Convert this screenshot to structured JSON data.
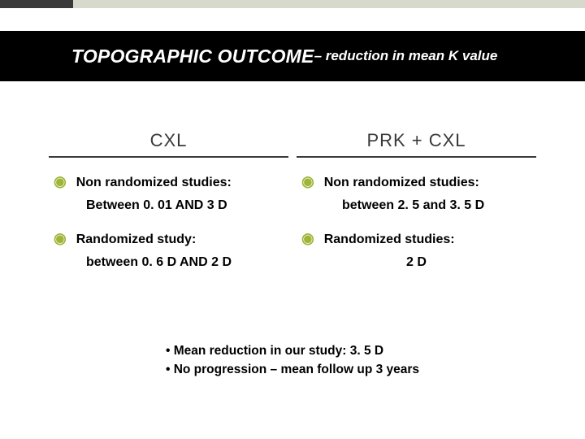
{
  "colors": {
    "topbar_bg": "#d6d9cb",
    "topbar_dark": "#3a3a3a",
    "titlebar_bg": "#000000",
    "title_text": "#ffffff",
    "bullet": "#9fb53a",
    "heading_rule": "#3a3a3a",
    "body_text": "#000000",
    "slide_bg": "#ffffff"
  },
  "typography": {
    "title_main_size_pt": 17,
    "title_sub_size_pt": 13,
    "heading_size_pt": 16,
    "body_size_pt": 12,
    "font_family": "Arial"
  },
  "title": {
    "main": "TOPOGRAPHIC OUTCOME ",
    "sub": "– reduction in mean K value"
  },
  "columns": {
    "left": {
      "heading": "CXL",
      "items": [
        {
          "label": "Non randomized studies:",
          "detail": "Between 0. 01 AND 3 D"
        },
        {
          "label": "Randomized study:",
          "detail": "between 0. 6 D AND 2 D"
        }
      ]
    },
    "right": {
      "heading": "PRK + CXL",
      "items": [
        {
          "label": "Non randomized studies:",
          "detail": "between 2. 5 and 3. 5 D"
        },
        {
          "label": "Randomized studies:",
          "detail": "2 D"
        }
      ]
    }
  },
  "footer": {
    "lines": [
      "Mean reduction in our study: 3. 5 D",
      "No progression – mean follow up 3 years"
    ]
  }
}
